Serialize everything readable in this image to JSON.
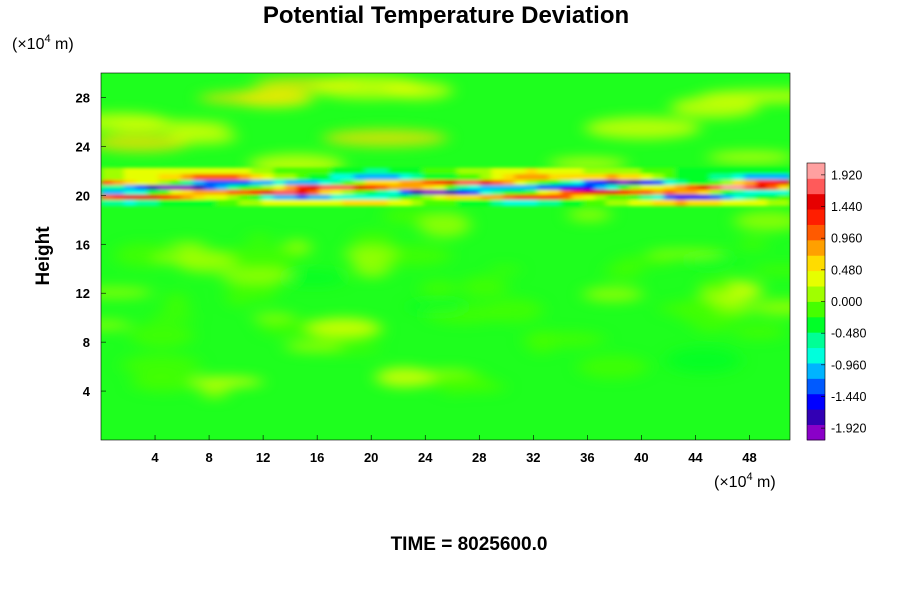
{
  "chart_data": {
    "type": "heatmap",
    "title": "Potential Temperature Deviation",
    "ylabel": "Height",
    "x_unit": {
      "prefix": "(×10",
      "exponent": "4",
      "suffix": " m)"
    },
    "y_unit": {
      "prefix": "(×10",
      "exponent": "4",
      "suffix": " m)"
    },
    "xlim": [
      0,
      51
    ],
    "ylim": [
      0,
      30
    ],
    "x_ticks": [
      4,
      8,
      12,
      16,
      20,
      24,
      28,
      32,
      36,
      40,
      44,
      48
    ],
    "y_ticks": [
      4,
      8,
      12,
      16,
      20,
      24,
      28
    ],
    "colorbar": {
      "min": -2.1,
      "max": 2.1,
      "ticks": [
        1.92,
        1.44,
        0.96,
        0.48,
        0.0,
        -0.48,
        -0.96,
        -1.44,
        -1.92
      ],
      "tick_labels": [
        "1.920",
        "1.440",
        "0.960",
        "0.480",
        "0.000",
        "-0.480",
        "-0.960",
        "-1.440",
        "-1.920"
      ],
      "colors": [
        "#8a00c8",
        "#3200b4",
        "#0000ff",
        "#005aff",
        "#00b4ff",
        "#00ffdc",
        "#00ff96",
        "#00ff28",
        "#46ff00",
        "#a0ff00",
        "#e6ff00",
        "#ffdc00",
        "#ffa000",
        "#ff5a00",
        "#ff1e00",
        "#e60000",
        "#ff5a5a",
        "#ffa0a0"
      ]
    },
    "field_description": "near-zero everywhere (green) except a strong alternating positive/negative band between heights 19 and 22",
    "time_label": "TIME = 8025600.0"
  }
}
